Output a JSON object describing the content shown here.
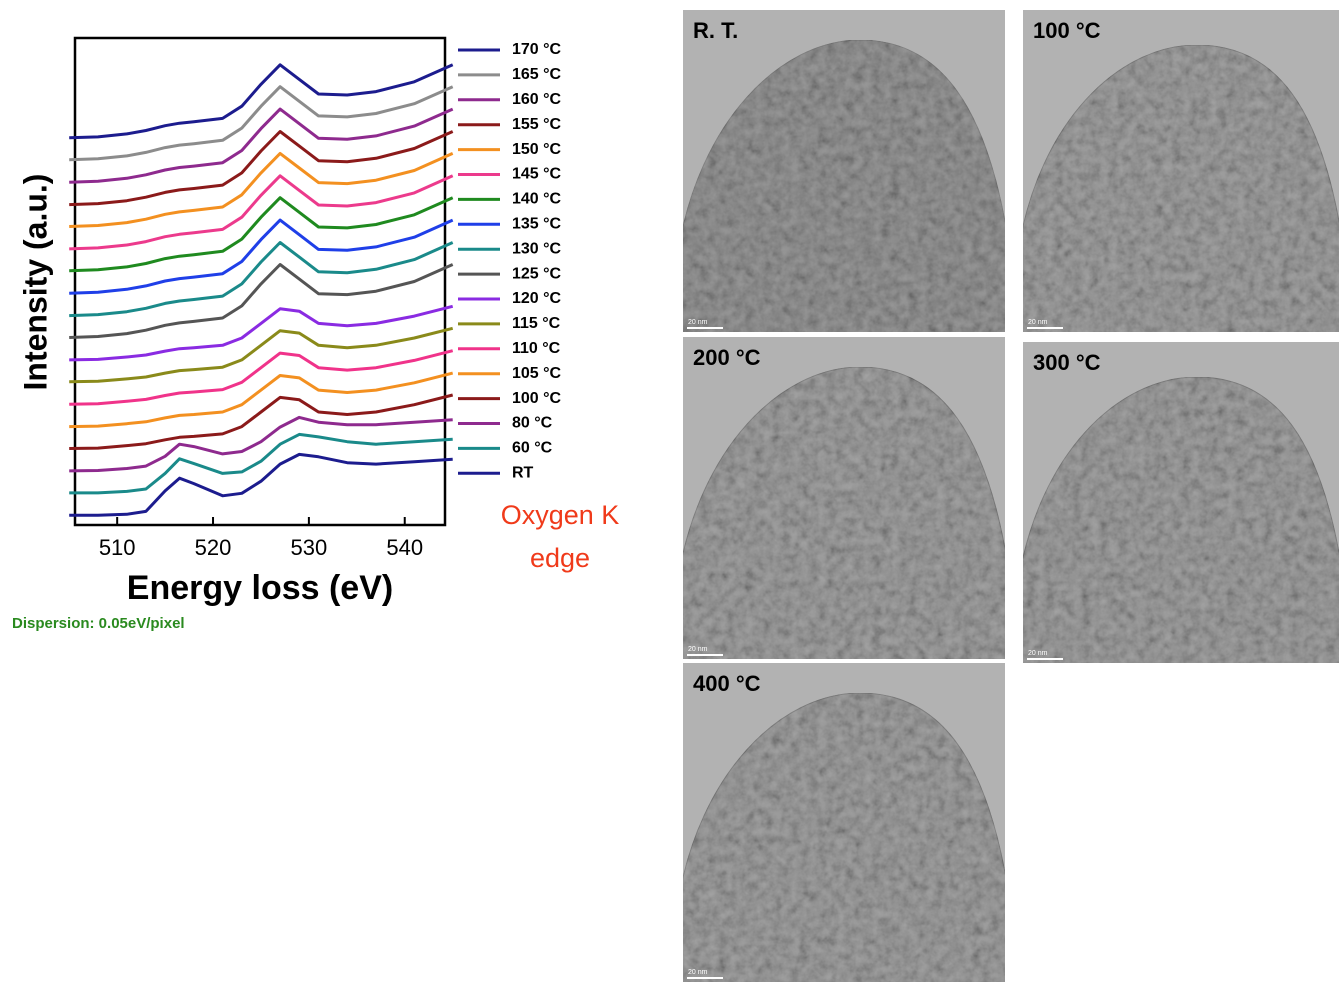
{
  "chart_data": {
    "type": "line",
    "x_label": "Energy loss (eV)",
    "y_label": "Intensity (a.u.)",
    "annotation": [
      "Oxygen K",
      "edge"
    ],
    "note": "Dispersion: 0.05eV/pixel",
    "xlim": [
      505.6,
      544.2
    ],
    "ylim": [
      0,
      100
    ],
    "xticks": [
      510,
      520,
      530,
      540
    ],
    "x": [
      505,
      508,
      511,
      513,
      515,
      516.5,
      518,
      521,
      523,
      525,
      527,
      529,
      531,
      534,
      537,
      541,
      545
    ],
    "series": [
      {
        "name": "170 °C",
        "color": "#1c1c8e",
        "values": [
          79.5,
          79.7,
          80.3,
          81,
          82,
          82.5,
          82.8,
          83.5,
          86,
          90.5,
          94.5,
          91.5,
          88.5,
          88.3,
          89,
          91,
          94.5
        ]
      },
      {
        "name": "165 °C",
        "color": "#8c8c8c",
        "values": [
          75,
          75.2,
          75.8,
          76.5,
          77.5,
          78,
          78.3,
          79,
          81.5,
          86,
          90,
          87,
          84,
          83.8,
          84.5,
          86.5,
          90
        ]
      },
      {
        "name": "160 °C",
        "color": "#8e2a8e",
        "values": [
          70.4,
          70.6,
          71.2,
          71.9,
          72.9,
          73.4,
          73.7,
          74.4,
          76.9,
          81.4,
          85.4,
          82.4,
          79.4,
          79.2,
          79.9,
          81.9,
          85.4
        ]
      },
      {
        "name": "155 °C",
        "color": "#8b1a1a",
        "values": [
          65.8,
          66,
          66.6,
          67.3,
          68.3,
          68.8,
          69.1,
          69.8,
          72.3,
          76.8,
          80.8,
          77.8,
          74.8,
          74.6,
          75.3,
          77.3,
          80.8
        ]
      },
      {
        "name": "150 °C",
        "color": "#f39020",
        "values": [
          61.3,
          61.5,
          62.1,
          62.8,
          63.8,
          64.3,
          64.6,
          65.3,
          67.8,
          72.3,
          76.3,
          73.3,
          70.3,
          70.1,
          70.8,
          72.8,
          76.3
        ]
      },
      {
        "name": "145 °C",
        "color": "#ec3a8c",
        "values": [
          56.7,
          56.9,
          57.5,
          58.2,
          59.2,
          59.7,
          60,
          60.7,
          63.2,
          67.7,
          71.7,
          68.7,
          65.7,
          65.5,
          66.2,
          68.2,
          71.7
        ]
      },
      {
        "name": "140 °C",
        "color": "#1f8a1f",
        "values": [
          52.2,
          52.4,
          53,
          53.7,
          54.7,
          55.2,
          55.5,
          56.2,
          58.7,
          63.2,
          67.2,
          64.2,
          61.2,
          61,
          61.7,
          63.7,
          67.2
        ]
      },
      {
        "name": "135 °C",
        "color": "#1f3fe8",
        "values": [
          47.6,
          47.8,
          48.4,
          49.1,
          50.1,
          50.6,
          50.9,
          51.6,
          54.1,
          58.6,
          62.6,
          59.6,
          56.6,
          56.4,
          57.1,
          59.1,
          62.6
        ]
      },
      {
        "name": "130 °C",
        "color": "#1a8a8a",
        "values": [
          43,
          43.2,
          43.8,
          44.5,
          45.5,
          46,
          46.3,
          47,
          49.5,
          54,
          58,
          55,
          52,
          51.8,
          52.5,
          54.5,
          58
        ]
      },
      {
        "name": "125 °C",
        "color": "#555555",
        "values": [
          38.5,
          38.7,
          39.3,
          40,
          41,
          41.5,
          41.8,
          42.5,
          45,
          49.5,
          53.5,
          50.5,
          47.5,
          47.3,
          48,
          50,
          53.5
        ]
      },
      {
        "name": "120 °C",
        "color": "#8a2be2",
        "values": [
          33.9,
          34,
          34.5,
          34.9,
          35.7,
          36.2,
          36.4,
          36.9,
          38.4,
          41.4,
          44.4,
          43.9,
          41.4,
          40.9,
          41.4,
          42.9,
          44.9
        ]
      },
      {
        "name": "115 °C",
        "color": "#8a8a1a",
        "values": [
          29.4,
          29.5,
          30,
          30.4,
          31.2,
          31.7,
          31.9,
          32.4,
          33.9,
          36.9,
          39.9,
          39.4,
          36.9,
          36.4,
          36.9,
          38.4,
          40.4
        ]
      },
      {
        "name": "110 °C",
        "color": "#f0338a",
        "values": [
          24.8,
          24.9,
          25.4,
          25.8,
          26.6,
          27.1,
          27.3,
          27.8,
          29.3,
          32.3,
          35.3,
          34.8,
          32.3,
          31.8,
          32.3,
          33.8,
          35.8
        ]
      },
      {
        "name": "105 °C",
        "color": "#f39020",
        "values": [
          20.2,
          20.3,
          20.8,
          21.2,
          22,
          22.5,
          22.7,
          23.2,
          24.7,
          27.7,
          30.7,
          30.2,
          27.7,
          27.2,
          27.7,
          29.2,
          31.2
        ]
      },
      {
        "name": "100 °C",
        "color": "#8b1a1a",
        "values": [
          15.7,
          15.8,
          16.3,
          16.7,
          17.5,
          18,
          18.2,
          18.7,
          20.2,
          23.2,
          26.2,
          25.7,
          23.2,
          22.7,
          23.2,
          24.7,
          26.7
        ]
      },
      {
        "name": "80 °C",
        "color": "#8e2a8e",
        "values": [
          11.1,
          11.2,
          11.6,
          12.1,
          14.1,
          16.6,
          16.1,
          14.6,
          15.1,
          17.1,
          20.1,
          22.1,
          21.1,
          20.6,
          20.6,
          21.1,
          21.6
        ]
      },
      {
        "name": "60 °C",
        "color": "#1a8a8a",
        "values": [
          6.6,
          6.6,
          6.9,
          7.4,
          10.6,
          13.6,
          12.6,
          10.6,
          10.9,
          13.1,
          16.6,
          18.6,
          18.1,
          17.1,
          16.6,
          17.1,
          17.6
        ]
      },
      {
        "name": "RT",
        "color": "#1c1c8e",
        "values": [
          2,
          2,
          2.2,
          2.8,
          7,
          9.6,
          8.5,
          6,
          6.5,
          9,
          12.5,
          14.5,
          14,
          12.8,
          12.5,
          13,
          13.5
        ]
      }
    ]
  },
  "images": [
    {
      "label": "R. T.",
      "scale_bar": "20 nm"
    },
    {
      "label": "100 °C",
      "scale_bar": "20 nm"
    },
    {
      "label": "200 °C",
      "scale_bar": "20 nm"
    },
    {
      "label": "300 °C",
      "scale_bar": "20 nm"
    },
    {
      "label": "400 °C",
      "scale_bar": "20 nm"
    }
  ]
}
